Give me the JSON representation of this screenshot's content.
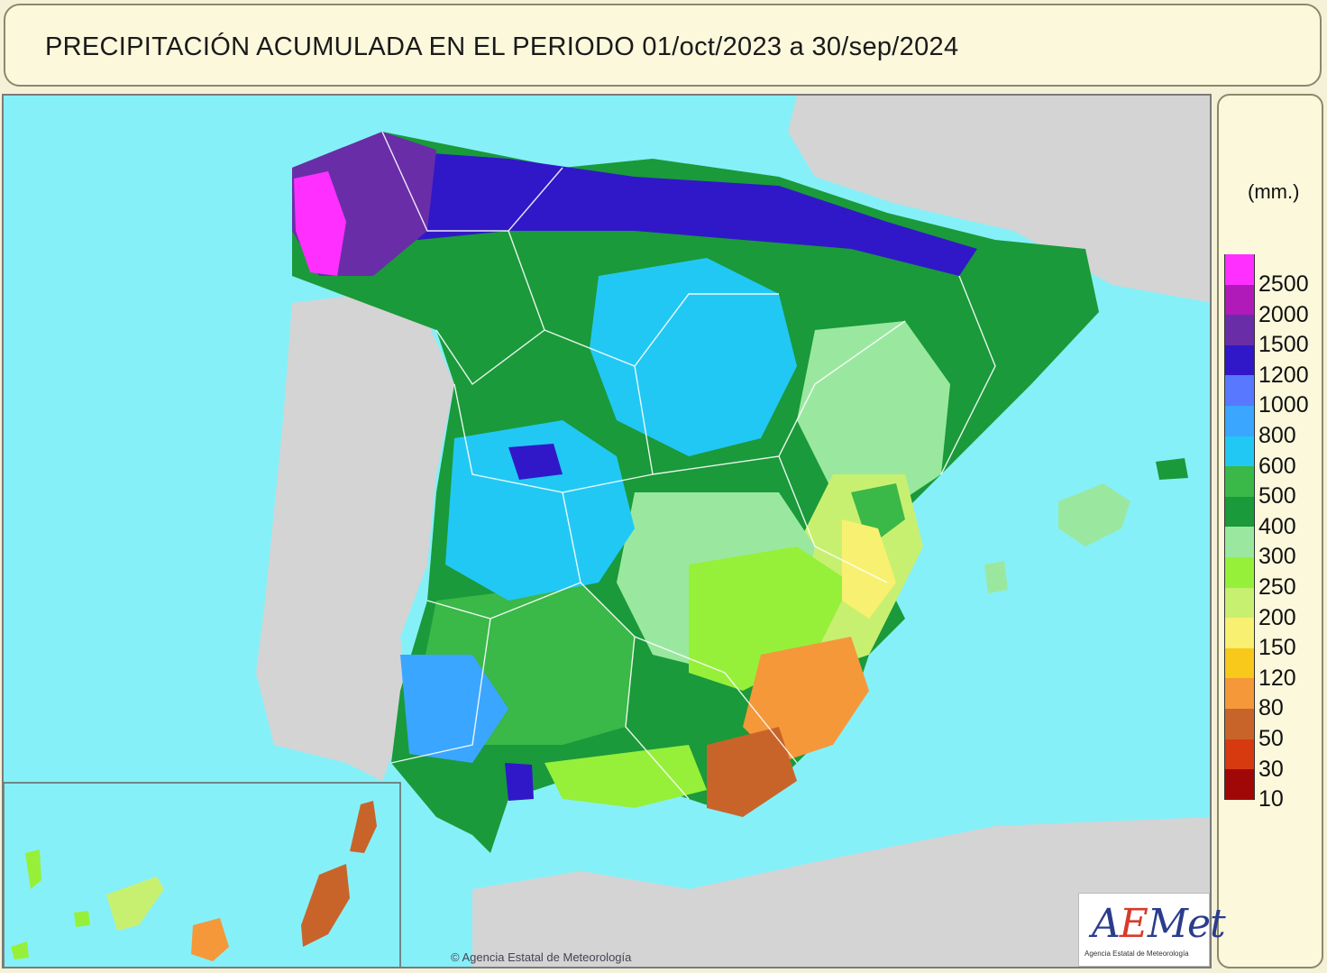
{
  "header": {
    "title": "PRECIPITACIÓN ACUMULADA EN EL PERIODO  01/oct/2023 a 30/sep/2024"
  },
  "legend": {
    "unit": "(mm.)",
    "items": [
      {
        "value": "2500",
        "color": "#ff30ff"
      },
      {
        "value": "2000",
        "color": "#b01ab8"
      },
      {
        "value": "1500",
        "color": "#6a2da8"
      },
      {
        "value": "1200",
        "color": "#3018c8"
      },
      {
        "value": "1000",
        "color": "#5878ff"
      },
      {
        "value": "800",
        "color": "#3aa6ff"
      },
      {
        "value": "600",
        "color": "#22c8f4"
      },
      {
        "value": "500",
        "color": "#3ab848"
      },
      {
        "value": "400",
        "color": "#1a9a3a"
      },
      {
        "value": "300",
        "color": "#9ae8a0"
      },
      {
        "value": "250",
        "color": "#96f03a"
      },
      {
        "value": "200",
        "color": "#c8f070"
      },
      {
        "value": "150",
        "color": "#f8f070"
      },
      {
        "value": "120",
        "color": "#f8c81a"
      },
      {
        "value": "80",
        "color": "#f4983a"
      },
      {
        "value": "50",
        "color": "#c8642a"
      },
      {
        "value": "30",
        "color": "#d83a10"
      },
      {
        "value": "10",
        "color": "#a00808"
      }
    ],
    "bottom_color": "#a00808"
  },
  "logo": {
    "text_a": "A",
    "text_e": "E",
    "text_rest": "Met",
    "subtitle": "Agencia Estatal de Meteorología"
  },
  "footer": {
    "copyright": "© Agencia Estatal de Meteorología"
  },
  "map_colors": {
    "sea": "#86f0f8",
    "land_other": "#d4d4d4",
    "border": "#ffffff"
  }
}
